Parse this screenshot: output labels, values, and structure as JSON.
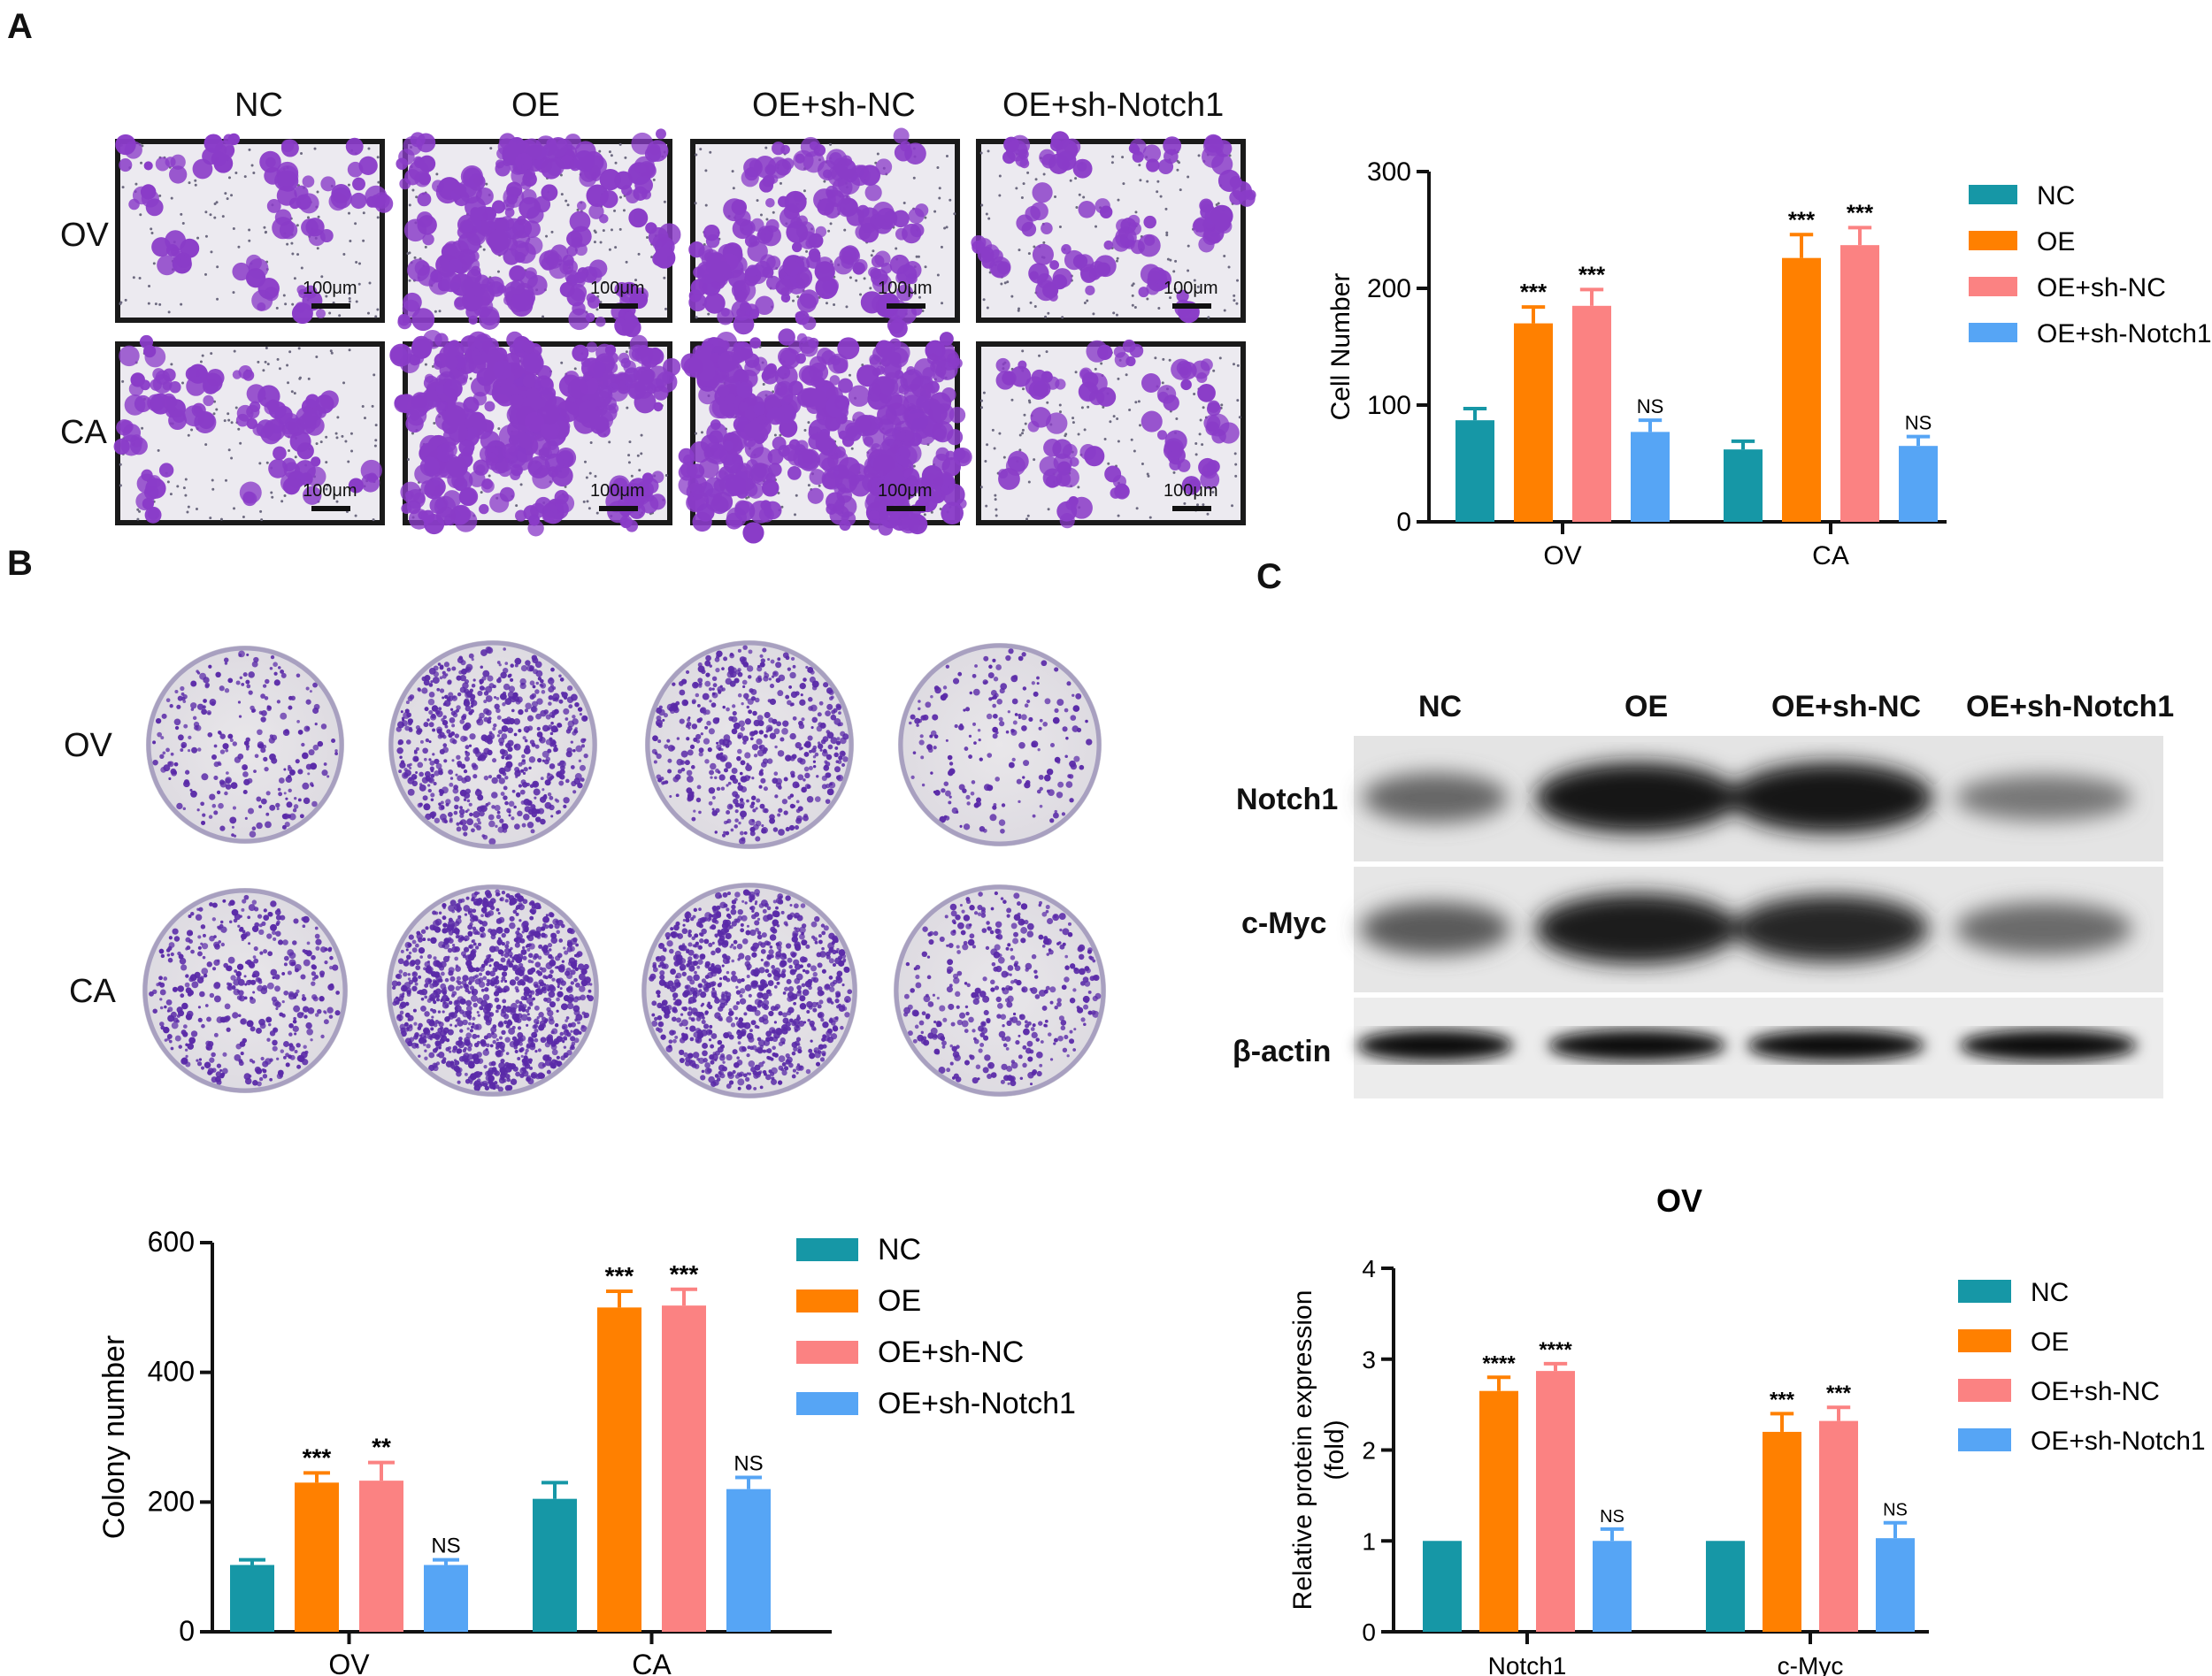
{
  "panels": {
    "a": "A",
    "b": "B",
    "c": "C"
  },
  "groups": [
    "NC",
    "OE",
    "OE+sh-NC",
    "OE+sh-Notch1"
  ],
  "rows": [
    "OV",
    "CA"
  ],
  "scale_label": "100μm",
  "western": {
    "bands": [
      "Notch1",
      "c-Myc",
      "β-actin"
    ]
  },
  "colors": {
    "NC": "#1697a6",
    "OE": "#ff8000",
    "OE+sh-NC": "#fb8282",
    "OE+sh-Notch1": "#56a5f5",
    "stain": "#8a3cc8",
    "colony": "#5a2aa8"
  },
  "chart_data": [
    {
      "id": "A",
      "type": "bar",
      "title": "",
      "xlabel": "",
      "ylabel": "Cell Number",
      "ylim": [
        0,
        300
      ],
      "yticks": [
        0,
        100,
        200,
        300
      ],
      "categories": [
        "OV",
        "CA"
      ],
      "series": [
        {
          "name": "NC",
          "values": [
            87,
            62
          ],
          "errors": [
            10,
            7
          ],
          "sig": [
            "",
            ""
          ]
        },
        {
          "name": "OE",
          "values": [
            170,
            226
          ],
          "errors": [
            14,
            20
          ],
          "sig": [
            "***",
            "***"
          ]
        },
        {
          "name": "OE+sh-NC",
          "values": [
            185,
            237
          ],
          "errors": [
            14,
            15
          ],
          "sig": [
            "***",
            "***"
          ]
        },
        {
          "name": "OE+sh-Notch1",
          "values": [
            77,
            65
          ],
          "errors": [
            10,
            8
          ],
          "sig": [
            "NS",
            "NS"
          ]
        }
      ],
      "legend": "right"
    },
    {
      "id": "B",
      "type": "bar",
      "title": "",
      "xlabel": "",
      "ylabel": "Colony number",
      "ylim": [
        0,
        600
      ],
      "yticks": [
        0,
        200,
        400,
        600
      ],
      "categories": [
        "OV",
        "CA"
      ],
      "series": [
        {
          "name": "NC",
          "values": [
            103,
            205
          ],
          "errors": [
            8,
            25
          ],
          "sig": [
            "",
            ""
          ]
        },
        {
          "name": "OE",
          "values": [
            230,
            500
          ],
          "errors": [
            15,
            25
          ],
          "sig": [
            "***",
            "***"
          ]
        },
        {
          "name": "OE+sh-NC",
          "values": [
            233,
            503
          ],
          "errors": [
            28,
            25
          ],
          "sig": [
            "**",
            "***"
          ]
        },
        {
          "name": "OE+sh-Notch1",
          "values": [
            103,
            220
          ],
          "errors": [
            8,
            18
          ],
          "sig": [
            "NS",
            "NS"
          ]
        }
      ],
      "legend": "right"
    },
    {
      "id": "C",
      "type": "bar",
      "title": "OV",
      "xlabel": "",
      "ylabel": "Relative protein expression (fold)",
      "ylim": [
        0,
        4
      ],
      "yticks": [
        0,
        1,
        2,
        3,
        4
      ],
      "categories": [
        "Notch1",
        "c-Myc"
      ],
      "series": [
        {
          "name": "NC",
          "values": [
            1.0,
            1.0
          ],
          "errors": [
            0,
            0
          ],
          "sig": [
            "",
            ""
          ]
        },
        {
          "name": "OE",
          "values": [
            2.65,
            2.2
          ],
          "errors": [
            0.15,
            0.2
          ],
          "sig": [
            "****",
            "***"
          ]
        },
        {
          "name": "OE+sh-NC",
          "values": [
            2.87,
            2.32
          ],
          "errors": [
            0.08,
            0.15
          ],
          "sig": [
            "****",
            "***"
          ]
        },
        {
          "name": "OE+sh-Notch1",
          "values": [
            1.0,
            1.03
          ],
          "errors": [
            0.13,
            0.17
          ],
          "sig": [
            "NS",
            "NS"
          ]
        }
      ],
      "legend": "right"
    }
  ]
}
